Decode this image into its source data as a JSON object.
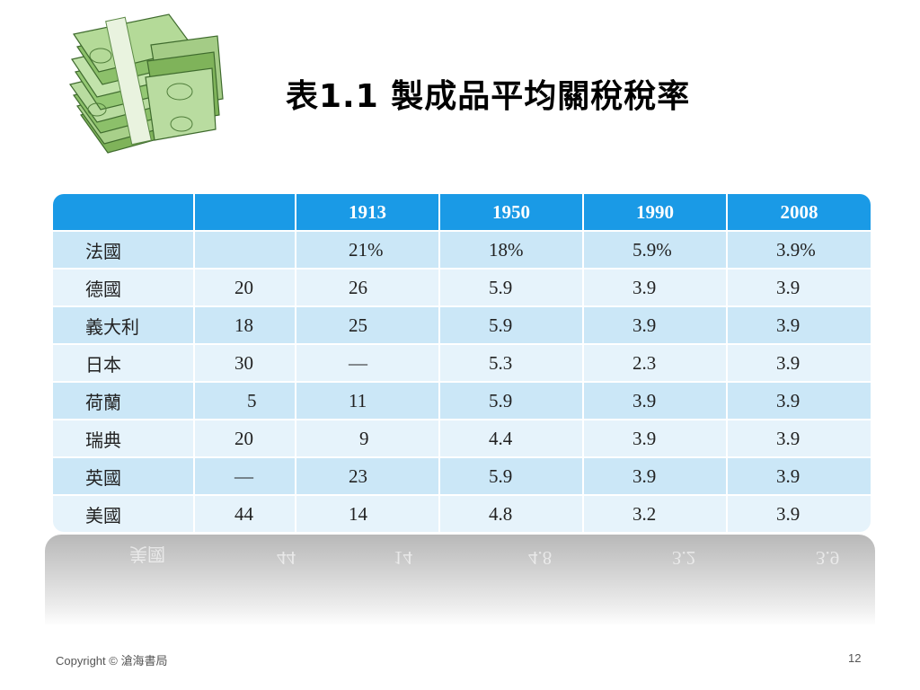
{
  "slide": {
    "title": "表1.1 製成品平均關稅稅率",
    "copyright": "Copyright © 滄海書局",
    "page_number": "12",
    "icon": "money-stack-icon"
  },
  "table": {
    "headers": [
      "",
      "",
      "1913",
      "1950",
      "1990",
      "2008"
    ],
    "rows": [
      {
        "country": "法國",
        "v": [
          "",
          "21%",
          "18%",
          "5.9%",
          "3.9%"
        ]
      },
      {
        "country": "德國",
        "v": [
          "20",
          "26",
          "5.9",
          "3.9",
          "3.9"
        ]
      },
      {
        "country": "義大利",
        "v": [
          "18",
          "25",
          "5.9",
          "3.9",
          "3.9"
        ]
      },
      {
        "country": "日本",
        "v": [
          "30",
          "—",
          "5.3",
          "2.3",
          "3.9"
        ]
      },
      {
        "country": "荷蘭",
        "v": [
          "5",
          "11",
          "5.9",
          "3.9",
          "3.9"
        ]
      },
      {
        "country": "瑞典",
        "v": [
          "20",
          "9",
          "4.4",
          "3.9",
          "3.9"
        ]
      },
      {
        "country": "英國",
        "v": [
          "—",
          "23",
          "5.9",
          "3.9",
          "3.9"
        ]
      },
      {
        "country": "美國",
        "v": [
          "44",
          "14",
          "4.8",
          "3.2",
          "3.9"
        ]
      }
    ]
  },
  "colors": {
    "header_bg": "#1a9ae6",
    "row_odd": "#cbe7f7",
    "row_even": "#e6f3fb"
  }
}
